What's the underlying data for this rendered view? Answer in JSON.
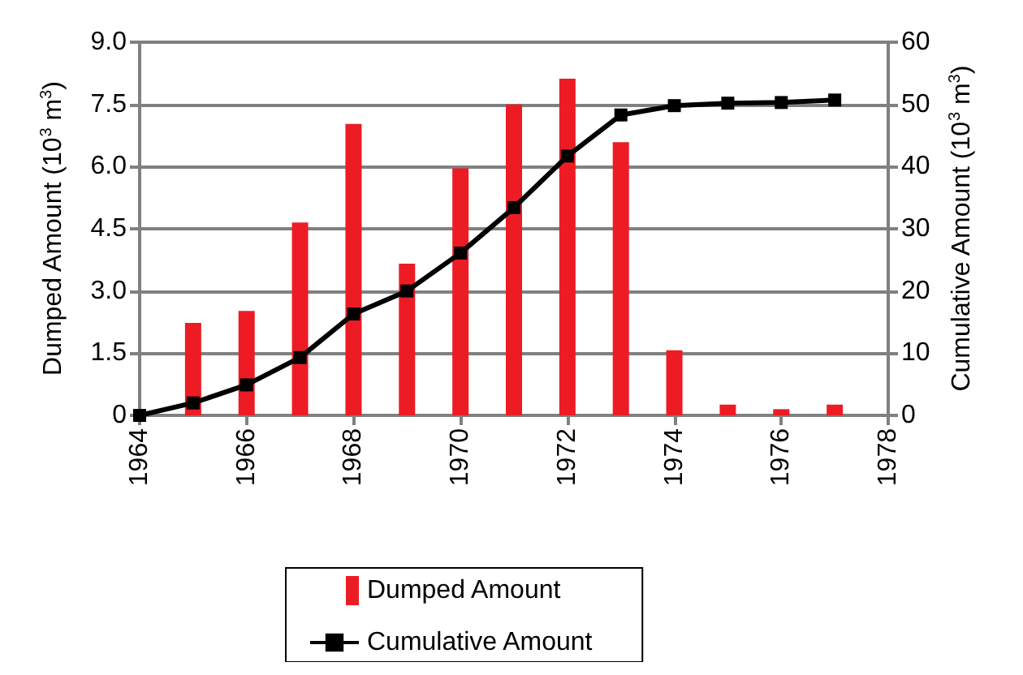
{
  "chart_data": {
    "type": "bar",
    "ylabel": "Dumped Amount (10$^{3}$ m$^{3}$)",
    "y2label": "Cumulative Amount (10$^{3}$ m$^{3}$)",
    "xlim": [
      1964,
      1978
    ],
    "xticks": [
      1964,
      1966,
      1968,
      1970,
      1972,
      1974,
      1976,
      1978
    ],
    "ylim": [
      0,
      9
    ],
    "yticks": [
      0,
      1.5,
      {
        "value": 3,
        "label": "3.0"
      },
      4.5,
      {
        "value": 6,
        "label": "6.0"
      },
      7.5,
      {
        "value": 9,
        "label": "9.0"
      }
    ],
    "y2lim": [
      0,
      60
    ],
    "y2ticks": [
      0,
      10,
      20,
      30,
      40,
      50,
      60
    ],
    "grid": "y",
    "legend": "bottom",
    "series": [
      {
        "name": "Dumped Amount",
        "color": "#ed1c24",
        "x": [
          1965,
          1966,
          1967,
          1968,
          1969,
          1970,
          1971,
          1972,
          1973,
          1974,
          1975,
          1976,
          1977
        ],
        "values": [
          2.23,
          2.52,
          4.65,
          7.03,
          3.66,
          5.96,
          7.5,
          8.12,
          6.59,
          1.57,
          0.26,
          0.15,
          0.26
        ]
      },
      {
        "name": "Cumulative Amount",
        "type": "line",
        "axis": "y2",
        "color": "#000000",
        "marker": "square",
        "line_style": "solid",
        "x": [
          1964,
          1965,
          1966,
          1967,
          1968,
          1969,
          1970,
          1971,
          1972,
          1973,
          1974,
          1975,
          1976,
          1977
        ],
        "values": [
          0,
          2,
          4.9,
          9.3,
          16.3,
          20,
          26.1,
          33.4,
          41.7,
          48.3,
          49.8,
          50.2,
          50.3,
          50.7
        ]
      }
    ]
  }
}
